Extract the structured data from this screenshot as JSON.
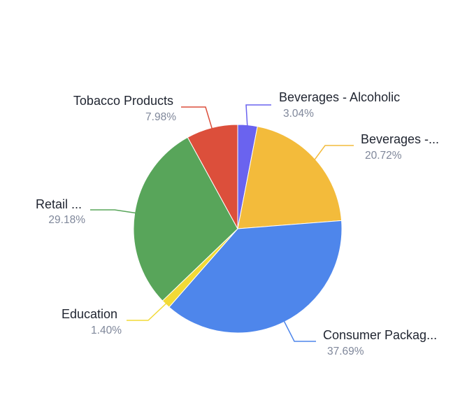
{
  "chart_data": {
    "type": "pie",
    "title": "",
    "legend": "none",
    "slices": [
      {
        "label": "Beverages - Alcoholic",
        "value": 3.04,
        "percent_label": "3.04%",
        "color": "#6a63ef"
      },
      {
        "label": "Beverages -...",
        "value": 20.72,
        "percent_label": "20.72%",
        "color": "#f3bb3b"
      },
      {
        "label": "Consumer Packag...",
        "value": 37.69,
        "percent_label": "37.69%",
        "color": "#4e86eb"
      },
      {
        "label": "Education",
        "value": 1.4,
        "percent_label": "1.40%",
        "color": "#f2da36"
      },
      {
        "label": "Retail ...",
        "value": 29.18,
        "percent_label": "29.18%",
        "color": "#58a55a"
      },
      {
        "label": "Tobacco Products",
        "value": 7.98,
        "percent_label": "7.98%",
        "color": "#dc4f3b"
      }
    ]
  }
}
